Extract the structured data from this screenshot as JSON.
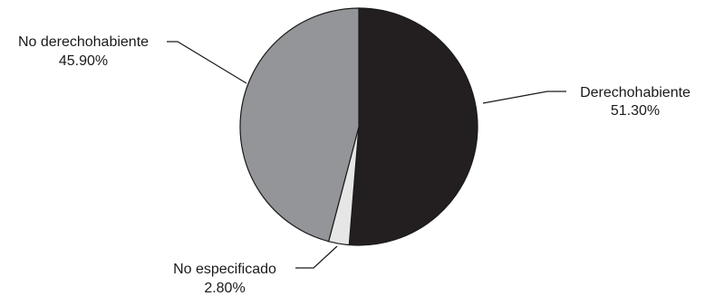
{
  "chart_data": {
    "type": "pie",
    "title": "",
    "slices": [
      {
        "label": "Derechohabiente",
        "value_label": "51.30%",
        "value": 51.3,
        "color": "#231f20"
      },
      {
        "label": "No especificado",
        "value_label": "2.80%",
        "value": 2.8,
        "color": "#e6e6e6"
      },
      {
        "label": "No derechohabiente",
        "value_label": "45.90%",
        "value": 45.9,
        "color": "#939598"
      }
    ]
  }
}
